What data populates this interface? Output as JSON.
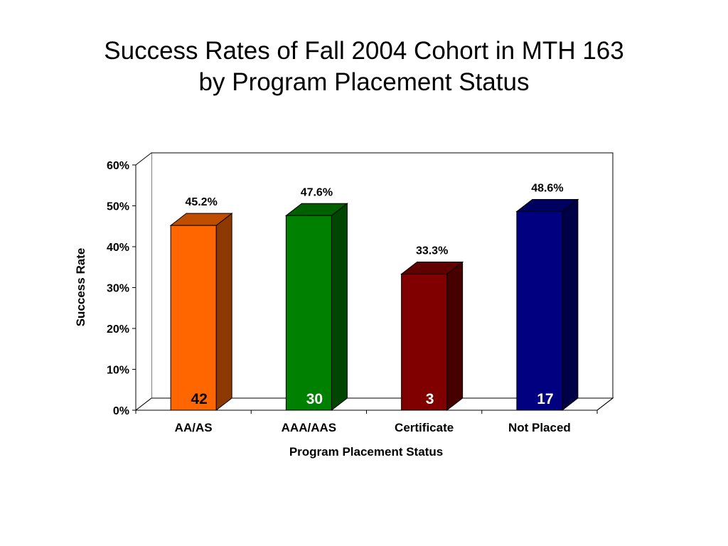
{
  "slide": {
    "title_line1": "Success Rates of Fall 2004 Cohort in MTH 163",
    "title_line2": "by Program Placement Status"
  },
  "chart_data": {
    "type": "bar",
    "style": "3d",
    "categories": [
      "AA/AS",
      "AAA/AAS",
      "Certificate",
      "Not Placed"
    ],
    "values": [
      45.2,
      47.6,
      33.3,
      48.6
    ],
    "value_labels": [
      "45.2%",
      "47.6%",
      "33.3%",
      "48.6%"
    ],
    "counts": [
      "42",
      "30",
      "3",
      "17"
    ],
    "colors": [
      "#ff6600",
      "#008000",
      "#800000",
      "#000080"
    ],
    "count_label_colors": [
      "#000000",
      "#ffffff",
      "#ffffff",
      "#ffffff"
    ],
    "xlabel": "Program Placement Status",
    "ylabel": "Success Rate",
    "ylim": [
      0,
      60
    ],
    "yticks": [
      "0%",
      "10%",
      "20%",
      "30%",
      "40%",
      "50%",
      "60%"
    ],
    "grid": false,
    "legend": "none"
  }
}
